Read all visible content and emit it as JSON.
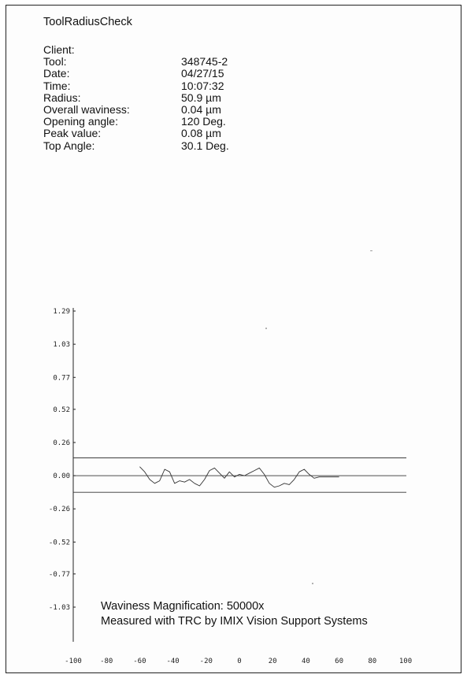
{
  "report": {
    "title": "ToolRadiusCheck",
    "fields": [
      {
        "label": "Client:",
        "value": ""
      },
      {
        "label": "Tool:",
        "value": "348745-2"
      },
      {
        "label": "Date:",
        "value": "04/27/15"
      },
      {
        "label": "Time:",
        "value": "10:07:32"
      },
      {
        "label": "Radius:",
        "value": "50.9 µm"
      },
      {
        "label": "Overall waviness:",
        "value": "0.04 µm"
      },
      {
        "label": "Opening angle:",
        "value": "120 Deg."
      },
      {
        "label": "Peak value:",
        "value": "0.08 µm"
      },
      {
        "label": "Top Angle:",
        "value": "30.1 Deg."
      }
    ]
  },
  "chart_data": {
    "type": "line",
    "title": "",
    "xlabel": "",
    "ylabel": "",
    "xlim": [
      -100,
      100
    ],
    "ylim": [
      -1.03,
      1.29
    ],
    "x_ticks": [
      -100,
      -80,
      -60,
      -40,
      -20,
      0,
      20,
      40,
      60,
      80,
      100
    ],
    "y_ticks": [
      1.29,
      1.03,
      0.77,
      0.52,
      0.26,
      0.0,
      -0.26,
      -0.52,
      -0.77,
      -1.03
    ],
    "y_tick_labels": [
      "1.29",
      "1.03",
      "0.77",
      "0.52",
      "0.26",
      "0.00",
      "-0.26",
      "-0.52",
      "-0.77",
      "-1.03"
    ],
    "grid": false,
    "reference_lines": [
      {
        "y": 0.14
      },
      {
        "y": 0.0
      },
      {
        "y": -0.13
      }
    ],
    "series": [
      {
        "x": [
          -60,
          -57,
          -54,
          -51,
          -48,
          -45,
          -42,
          -39,
          -36,
          -33,
          -30,
          -27,
          -24,
          -21,
          -18,
          -15,
          -12,
          -9,
          -6,
          -3,
          0,
          3,
          6,
          9,
          12,
          15,
          18,
          21,
          24,
          27,
          30,
          33,
          36,
          39,
          42,
          45,
          48,
          51,
          54,
          57,
          60
        ],
        "y": [
          0.07,
          0.03,
          -0.03,
          -0.06,
          -0.04,
          0.05,
          0.03,
          -0.06,
          -0.04,
          -0.05,
          -0.03,
          -0.06,
          -0.08,
          -0.03,
          0.04,
          0.06,
          0.02,
          -0.02,
          0.03,
          -0.01,
          0.01,
          0.0,
          0.02,
          0.04,
          0.06,
          0.01,
          -0.06,
          -0.09,
          -0.08,
          -0.06,
          -0.07,
          -0.03,
          0.03,
          0.05,
          0.01,
          -0.02,
          -0.01,
          -0.01,
          -0.01,
          -0.01,
          -0.01
        ]
      }
    ],
    "annotations": [
      "Waviness Magnification: 50000x",
      "Measured with TRC by IMIX Vision Support Systems"
    ]
  }
}
